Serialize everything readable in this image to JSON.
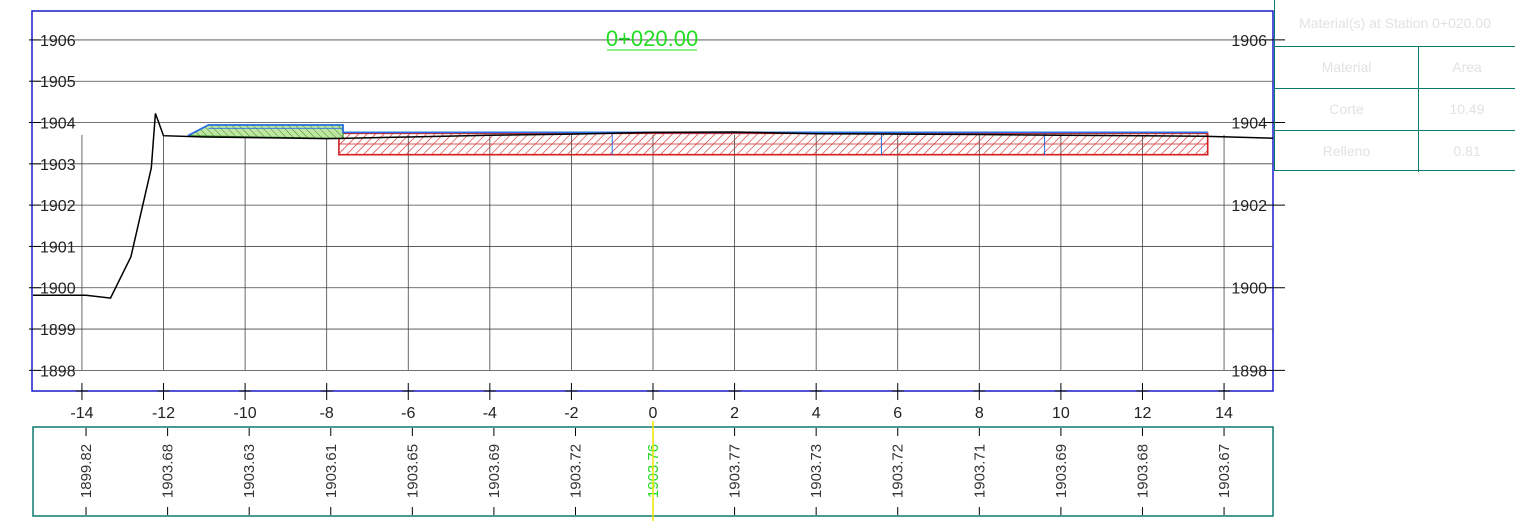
{
  "station": {
    "label": "0+020.00",
    "color": "#22dd22"
  },
  "colors": {
    "frame": "#1a1acc",
    "band_frame": "#0a7a6e",
    "grid": "#444444",
    "ground": "#000000",
    "cut": "#d42020",
    "fill_hatch": "#3a8a2a",
    "fill_tint": "#bfe7a3",
    "design": "#2a6fe0",
    "panel_text": "#e2e2e2",
    "centerline_marker": "#f2e600"
  },
  "chart_data": {
    "type": "line",
    "title": "0+020.00",
    "xlabel": "",
    "ylabel": "",
    "xlim": [
      -15.2,
      15.2
    ],
    "ylim": [
      1897.5,
      1906.7
    ],
    "x_ticks": [
      -14,
      -12,
      -10,
      -8,
      -6,
      -4,
      -2,
      0,
      2,
      4,
      6,
      8,
      10,
      12,
      14
    ],
    "y_ticks_left": [
      1906,
      1905,
      1904,
      1903,
      1902,
      1901,
      1900,
      1899,
      1898
    ],
    "y_ticks_right": [
      1906,
      1904,
      1902,
      1900,
      1898
    ],
    "grid": true,
    "series": [
      {
        "role": "existing-ground",
        "x": [
          -15.2,
          -13.9,
          -13.3,
          -12.8,
          -12.3,
          -12.2,
          -12.0,
          -11.0,
          -9.5,
          -8.0,
          -7.5,
          -6.0,
          -4.0,
          -2.0,
          0.0,
          2.0,
          4.0,
          6.0,
          8.0,
          10.0,
          12.0,
          13.5,
          15.2
        ],
        "y": [
          1899.82,
          1899.82,
          1899.75,
          1900.75,
          1902.9,
          1904.22,
          1903.68,
          1903.65,
          1903.63,
          1903.61,
          1903.62,
          1903.65,
          1903.69,
          1903.72,
          1903.76,
          1903.77,
          1903.73,
          1903.72,
          1903.71,
          1903.69,
          1903.68,
          1903.67,
          1903.62
        ]
      },
      {
        "role": "cut-area",
        "x": [
          -7.7,
          13.6,
          13.6,
          -7.7
        ],
        "y": [
          1903.74,
          1903.74,
          1903.22,
          1903.22
        ]
      },
      {
        "role": "fill-area",
        "x": [
          -11.4,
          -10.9,
          -7.6,
          -7.6,
          -11.4
        ],
        "y": [
          1903.68,
          1903.94,
          1903.94,
          1903.61,
          1903.68
        ]
      },
      {
        "role": "design-subgrade",
        "x": [
          -11.4,
          -10.9,
          -7.6,
          -7.6,
          13.6
        ],
        "y": [
          1903.68,
          1903.94,
          1903.94,
          1903.76,
          1903.76
        ]
      }
    ],
    "band": {
      "x": [
        -13.9,
        -11.9,
        -9.9,
        -7.9,
        -5.9,
        -3.9,
        -1.9,
        0.0,
        2.0,
        4.0,
        6.0,
        8.0,
        10.0,
        12.0,
        14.0
      ],
      "labels": [
        "1899.82",
        "1903.68",
        "1903.63",
        "1903.61",
        "1903.65",
        "1903.69",
        "1903.72",
        "1903.76",
        "1903.77",
        "1903.73",
        "1903.72",
        "1903.71",
        "1903.69",
        "1903.68",
        "1903.67"
      ],
      "highlight": "1903.76"
    }
  },
  "materials_panel": {
    "title": "Material(s) at Station 0+020.00",
    "headers": {
      "material": "Material",
      "area": "Area"
    },
    "rows": [
      {
        "material": "Corte",
        "area": "10.49"
      },
      {
        "material": "Relleno",
        "area": "0.81"
      }
    ]
  }
}
